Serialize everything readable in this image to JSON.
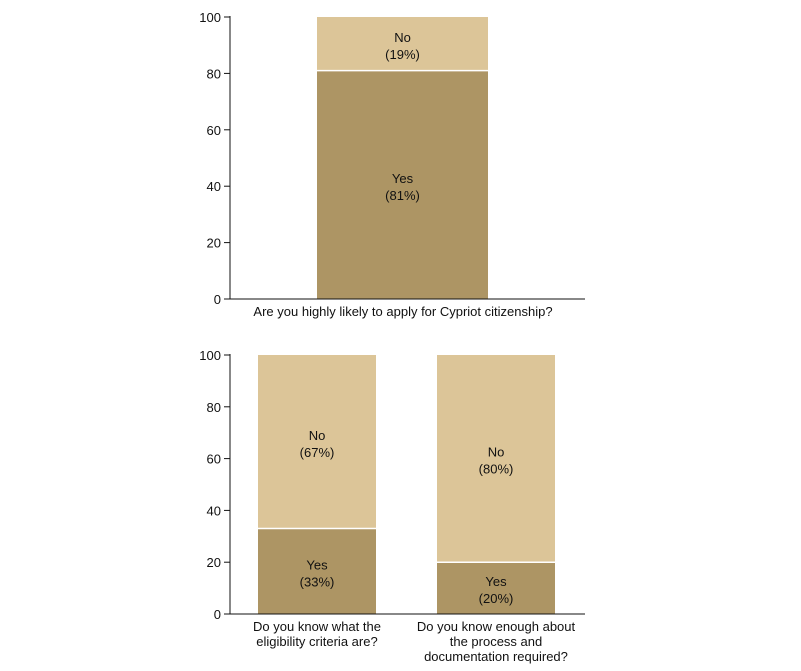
{
  "colors": {
    "yes": "#ad9564",
    "no": "#dcc598",
    "axis": "#111111",
    "text": "#111111",
    "divider": "#ffffff"
  },
  "chart_data": [
    {
      "type": "bar",
      "stacked": true,
      "ylim": [
        0,
        100
      ],
      "yticks": [
        0,
        20,
        40,
        60,
        80,
        100
      ],
      "categories": [
        "Are you highly likely to apply for Cypriot citizenship?"
      ],
      "series": [
        {
          "name": "Yes",
          "values": [
            81
          ],
          "labels": [
            "(81%)"
          ]
        },
        {
          "name": "No",
          "values": [
            19
          ],
          "labels": [
            "(19%)"
          ]
        }
      ]
    },
    {
      "type": "bar",
      "stacked": true,
      "ylim": [
        0,
        100
      ],
      "yticks": [
        0,
        20,
        40,
        60,
        80,
        100
      ],
      "categories": [
        [
          "Do you know what the",
          "eligibility criteria are?"
        ],
        [
          "Do you know enough about",
          "the process and",
          "documentation required?"
        ]
      ],
      "series": [
        {
          "name": "Yes",
          "values": [
            33,
            20
          ],
          "labels": [
            "(33%)",
            "(20%)"
          ]
        },
        {
          "name": "No",
          "values": [
            67,
            80
          ],
          "labels": [
            "(67%)",
            "(80%)"
          ]
        }
      ]
    }
  ]
}
